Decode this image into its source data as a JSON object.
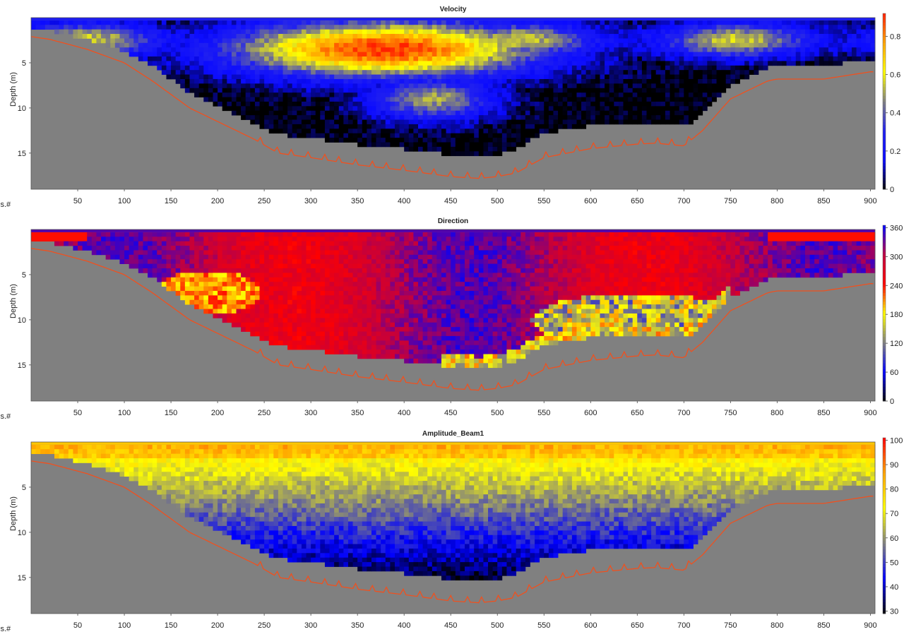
{
  "chart_data": [
    {
      "type": "heatmap",
      "title": "Velocity",
      "xlabel": "Ens.#",
      "ylabel": "Depth (m)",
      "xlim": [
        0,
        905
      ],
      "ylim": [
        19,
        0
      ],
      "xticks": [
        50,
        100,
        150,
        200,
        250,
        300,
        350,
        400,
        450,
        500,
        550,
        600,
        650,
        700,
        750,
        800,
        850,
        900
      ],
      "yticks": [
        5,
        10,
        15
      ],
      "colorbar": {
        "min": 0,
        "max": 0.92,
        "ticks": [
          0,
          0.2,
          0.4,
          0.6,
          0.8
        ],
        "colors": [
          "#000000",
          "#0a0aff",
          "#2020f0",
          "#808080",
          "#ffff00",
          "#ffa500",
          "#ff2000"
        ]
      },
      "field": "velocity",
      "min_depth_row": 0
    },
    {
      "type": "heatmap",
      "title": "Direction",
      "xlabel": "Ens.#",
      "ylabel": "Depth (m)",
      "xlim": [
        0,
        905
      ],
      "ylim": [
        19,
        0
      ],
      "xticks": [
        50,
        100,
        150,
        200,
        250,
        300,
        350,
        400,
        450,
        500,
        550,
        600,
        650,
        700,
        750,
        800,
        850,
        900
      ],
      "yticks": [
        5,
        10,
        15
      ],
      "colorbar": {
        "min": 0,
        "max": 365,
        "ticks": [
          0,
          60,
          120,
          180,
          240,
          300,
          360
        ],
        "colors": [
          "#000000",
          "#0000ff",
          "#808080",
          "#ffff00",
          "#ff0000",
          "#c00040",
          "#0000ff"
        ]
      },
      "field": "direction"
    },
    {
      "type": "heatmap",
      "title": "Amplitude_Beam1",
      "xlabel": "Ens.#",
      "ylabel": "Depth (m)",
      "xlim": [
        0,
        905
      ],
      "ylim": [
        19,
        0
      ],
      "xticks": [
        50,
        100,
        150,
        200,
        250,
        300,
        350,
        400,
        450,
        500,
        550,
        600,
        650,
        700,
        750,
        800,
        850,
        900
      ],
      "yticks": [
        5,
        10,
        15
      ],
      "colorbar": {
        "min": 29,
        "max": 101,
        "ticks": [
          30,
          40,
          50,
          60,
          70,
          80,
          90,
          100
        ],
        "colors": [
          "#000000",
          "#0000ff",
          "#808080",
          "#ffff00",
          "#ffa500",
          "#ff0000"
        ]
      },
      "field": "amplitude"
    }
  ],
  "bottom_profile": {
    "ens": [
      0,
      20,
      60,
      100,
      130,
      150,
      170,
      200,
      240,
      265,
      300,
      350,
      400,
      450,
      480,
      500,
      520,
      550,
      600,
      650,
      670,
      700,
      720,
      750,
      790,
      800,
      850,
      900,
      905
    ],
    "depth": [
      2.1,
      2.4,
      3.5,
      5.0,
      7.0,
      8.5,
      10.0,
      11.5,
      13.5,
      15.0,
      15.5,
      16.3,
      16.9,
      17.6,
      17.8,
      17.6,
      17.2,
      15.5,
      14.5,
      14.0,
      13.9,
      14.2,
      12.5,
      9.0,
      7.0,
      6.8,
      6.8,
      6.0,
      6.0
    ]
  },
  "data_limit": {
    "ens": [
      0,
      20,
      60,
      100,
      130,
      150,
      170,
      200,
      240,
      265,
      300,
      350,
      400,
      450,
      480,
      500,
      520,
      550,
      600,
      650,
      670,
      700,
      720,
      750,
      790,
      800,
      850,
      900,
      905
    ],
    "depth": [
      1.3,
      1.6,
      2.7,
      4.0,
      5.5,
      7.0,
      8.5,
      10.0,
      12.0,
      13.2,
      13.6,
      14.3,
      14.8,
      15.4,
      15.7,
      15.4,
      14.9,
      13.0,
      12.2,
      12.0,
      12.0,
      12.3,
      11.0,
      7.8,
      5.8,
      5.6,
      5.6,
      4.8,
      4.8
    ]
  },
  "colors": {
    "background_gray": "#808080",
    "bottom_line": "#f0501e",
    "frame": "#555555"
  }
}
